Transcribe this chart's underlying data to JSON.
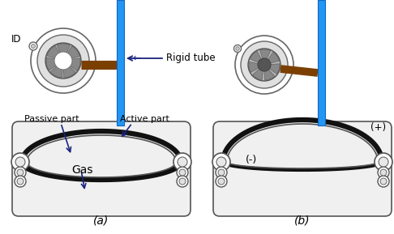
{
  "tube_color": "#2196F3",
  "tube_dark": "#1565C0",
  "connector_color": "#7B3F00",
  "arrow_color": "#1a237e",
  "fig_width": 4.86,
  "fig_height": 2.89,
  "label_a": "(a)",
  "label_b": "(b)",
  "label_passive": "Passive part",
  "label_active": "Active part",
  "label_gas": "Gas",
  "label_id": "ID",
  "label_rigid": "← Rigid tube",
  "label_plus": "(+)",
  "label_minus": "(-)",
  "housing_bg": "#f0f0f0",
  "housing_outline": "#555555",
  "membrane_outer": "#111111",
  "membrane_inner": "#555555",
  "iris_gray": "#999999",
  "iris_dark": "#666666",
  "white": "#ffffff",
  "light_gray": "#dddddd"
}
